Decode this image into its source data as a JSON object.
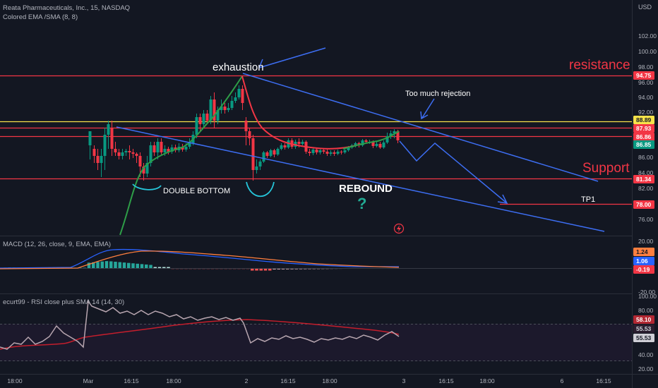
{
  "header": {
    "symbol_line": "Reata Pharmaceuticals, Inc., 15, NASDAQ",
    "indicator_line": "Colored EMA /SMA (8, 8)",
    "currency": "USD"
  },
  "price_axis": {
    "ticks": [
      "102.00",
      "100.00",
      "98.00",
      "96.00",
      "94.00",
      "92.00",
      "90.00",
      "88.00",
      "86.00",
      "84.00",
      "82.00",
      "80.00",
      "76.00"
    ]
  },
  "price_tags": [
    {
      "text": "94.75",
      "bg": "#f23645",
      "fg": "#ffffff"
    },
    {
      "text": "88.89",
      "bg": "#f7e34a",
      "fg": "#131722"
    },
    {
      "text": "87.93",
      "bg": "#f23645",
      "fg": "#ffffff"
    },
    {
      "text": "86.86",
      "bg": "#f23645",
      "fg": "#ffffff"
    },
    {
      "text": "86.85",
      "bg": "#089981",
      "fg": "#ffffff"
    },
    {
      "text": "81.34",
      "bg": "#f23645",
      "fg": "#ffffff"
    },
    {
      "text": "78.00",
      "bg": "#f23645",
      "fg": "#ffffff"
    }
  ],
  "annotations": {
    "resistance": "resistance",
    "support": "Support",
    "exhaustion": "exhaustion",
    "rejection": "Too much rejection",
    "double_bottom": "DOUBLE BOTTOM",
    "rebound": "REBOUND",
    "question": "?",
    "tp1": "TP1"
  },
  "macd": {
    "title": "MACD (12, 26, close, 9, EMA, EMA)",
    "ticks": [
      "20.00",
      "0.00",
      "-20.00"
    ],
    "tags": [
      {
        "text": "1.24",
        "bg": "#ff7f3f",
        "fg": "#131722"
      },
      {
        "text": "1.06",
        "bg": "#2962ff",
        "fg": "#ffffff"
      },
      {
        "text": "-0.19",
        "bg": "#f23645",
        "fg": "#ffffff"
      }
    ]
  },
  "rsi": {
    "title": "ecurt99 - RSI close plus SMA 14 (14, 30)",
    "ticks": [
      "100.00",
      "80.00",
      "40.00",
      "20.00"
    ],
    "tags": [
      {
        "text": "58.10",
        "bg": "#b22833",
        "fg": "#ffffff"
      },
      {
        "text": "55.53",
        "bg": "#2a1e2f",
        "fg": "#d1d4dc"
      },
      {
        "text": "55.53",
        "bg": "#cfcfd6",
        "fg": "#131722"
      }
    ]
  },
  "time_axis": {
    "ticks": [
      "18:00",
      "Mar",
      "16:15",
      "18:00",
      "2",
      "16:15",
      "18:00",
      "3",
      "16:15",
      "18:00",
      "6",
      "16:15"
    ]
  },
  "colors": {
    "background": "#131722",
    "up": "#089981",
    "down": "#f23645",
    "trendline": "#3d6ef3",
    "ema_up": "#2e9e48",
    "ema_down": "#f23645",
    "macd_line": "#2962ff",
    "signal_line": "#ff7f3f",
    "rsi_line": "#b8a6b0",
    "rsi_sma": "#c41e2c"
  }
}
